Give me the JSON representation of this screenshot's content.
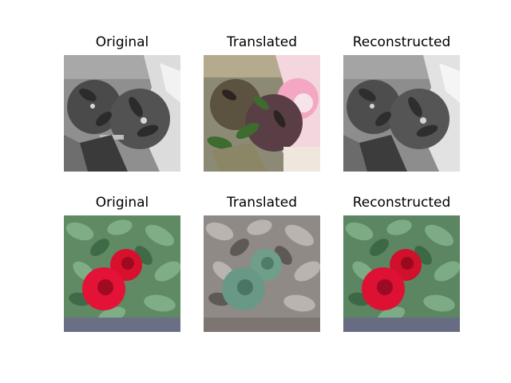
{
  "rows": [
    {
      "panels": [
        {
          "title": "Original"
        },
        {
          "title": "Translated"
        },
        {
          "title": "Reconstructed"
        }
      ]
    },
    {
      "panels": [
        {
          "title": "Original"
        },
        {
          "title": "Translated"
        },
        {
          "title": "Reconstructed"
        }
      ]
    }
  ]
}
